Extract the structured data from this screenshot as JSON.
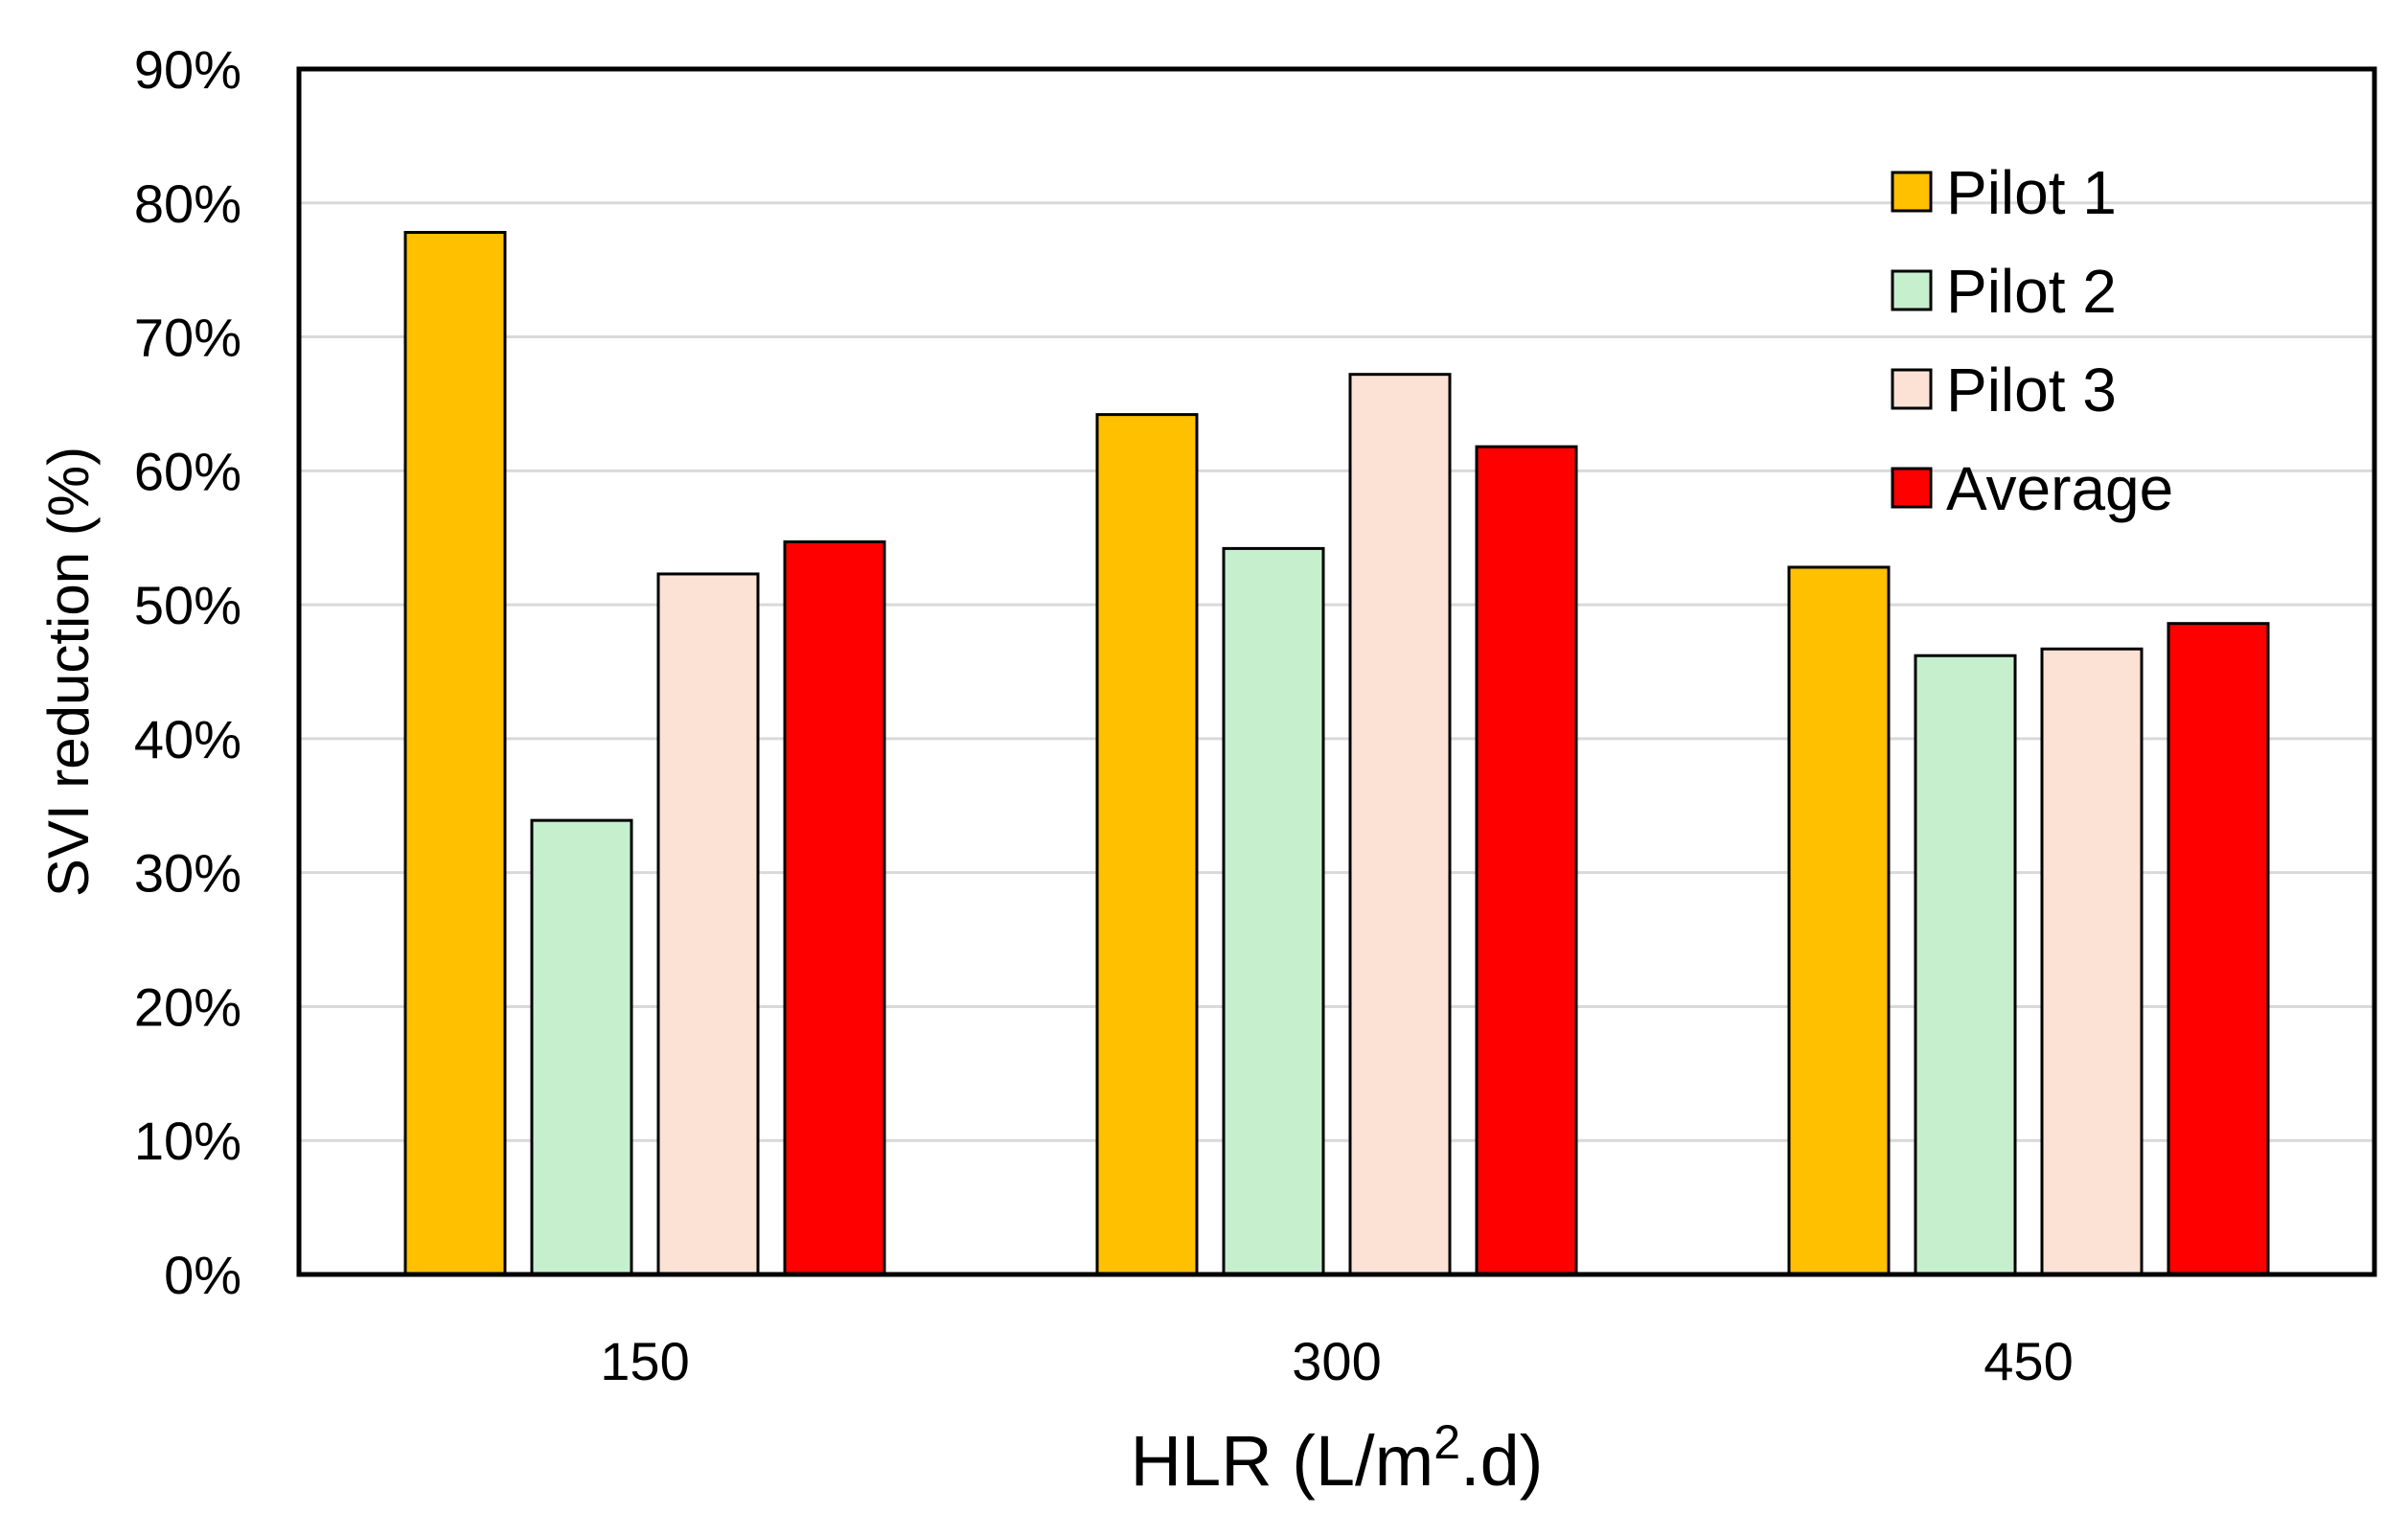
{
  "chart_data": {
    "type": "bar",
    "title": "",
    "ylabel": "SVI reduction (%)",
    "xlabel": {
      "pre": "HLR (L/m",
      "sup": "2",
      "post": ".d)"
    },
    "categories": [
      "150",
      "300",
      "450"
    ],
    "series": [
      {
        "name": "Pilot 1",
        "color": "#FFC000",
        "values": [
          0.778,
          0.642,
          0.528
        ]
      },
      {
        "name": "Pilot 2",
        "color": "#C6EFCE",
        "values": [
          0.339,
          0.542,
          0.462
        ]
      },
      {
        "name": "Pilot 3",
        "color": "#FBE2D5",
        "values": [
          0.523,
          0.672,
          0.467
        ]
      },
      {
        "name": "Average",
        "color": "#FF0000",
        "values": [
          0.547,
          0.618,
          0.486
        ]
      }
    ],
    "ylim": [
      0,
      0.9
    ],
    "yticks": [
      {
        "value": 0.0,
        "label": "0%"
      },
      {
        "value": 0.1,
        "label": "10%"
      },
      {
        "value": 0.2,
        "label": "20%"
      },
      {
        "value": 0.3,
        "label": "30%"
      },
      {
        "value": 0.4,
        "label": "40%"
      },
      {
        "value": 0.5,
        "label": "50%"
      },
      {
        "value": 0.6,
        "label": "60%"
      },
      {
        "value": 0.7,
        "label": "70%"
      },
      {
        "value": 0.8,
        "label": "80%"
      },
      {
        "value": 0.9,
        "label": "90%"
      }
    ],
    "grid": true,
    "gridline_color": "#D9D9D9",
    "legend_position": "top-right"
  }
}
